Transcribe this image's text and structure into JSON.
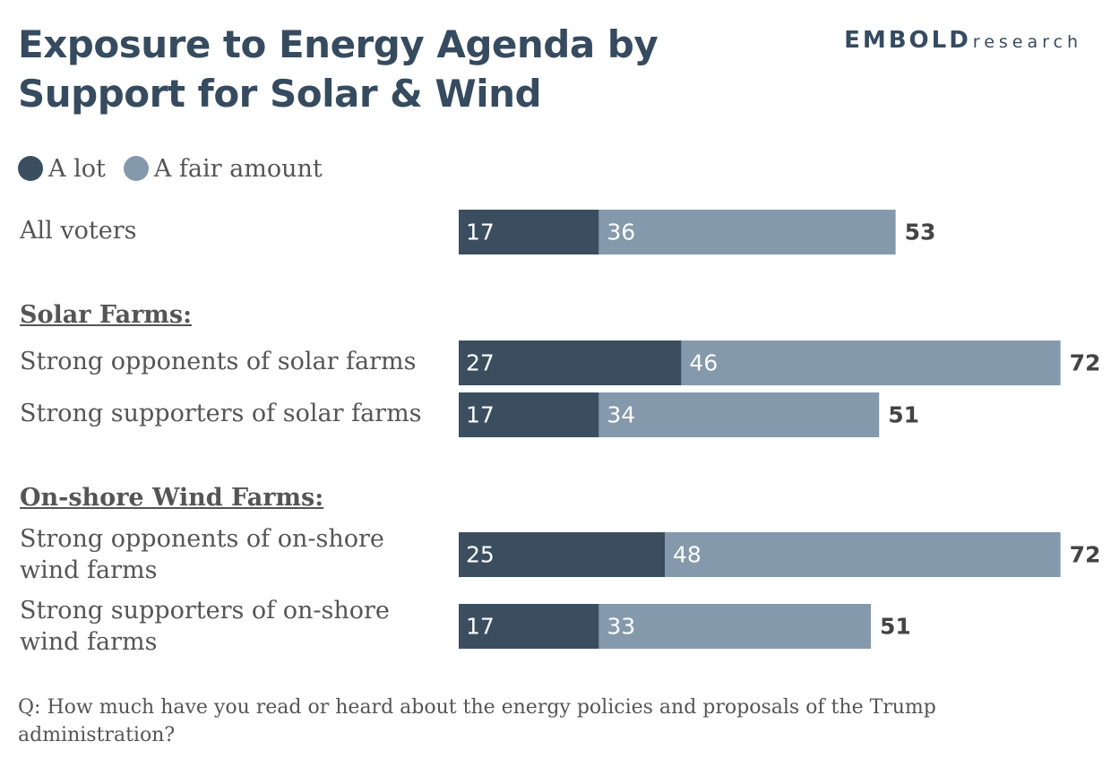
{
  "title": "Exposure to Energy Agenda by Support for Solar & Wind",
  "brand": {
    "name": "EMBOLD",
    "suffix": "research"
  },
  "colors": {
    "a_lot": "#3a4e60",
    "a_fair_amount": "#8499ab",
    "total_text": "#444444",
    "segment_text": "#ffffff"
  },
  "legend": [
    {
      "label": "A lot",
      "color": "#3a4e60"
    },
    {
      "label": "A fair amount",
      "color": "#8499ab"
    }
  ],
  "sections": {
    "solar": "Solar Farms:",
    "wind": "On-shore Wind Farms:"
  },
  "rows": [
    {
      "label": "All voters",
      "a_lot": 17,
      "fair": 36,
      "total": 53
    },
    {
      "label": "Strong opponents of solar farms",
      "a_lot": 27,
      "fair": 46,
      "total": 72
    },
    {
      "label": "Strong supporters of solar farms",
      "a_lot": 17,
      "fair": 34,
      "total": 51
    },
    {
      "label": "Strong opponents of on-shore wind farms",
      "a_lot": 25,
      "fair": 48,
      "total": 72
    },
    {
      "label": "Strong supporters of on-shore wind farms",
      "a_lot": 17,
      "fair": 33,
      "total": 51
    }
  ],
  "chart_data": {
    "type": "bar",
    "orientation": "horizontal",
    "stacked": true,
    "title": "Exposure to Energy Agenda by Support for Solar & Wind",
    "categories": [
      "All voters",
      "Strong opponents of solar farms",
      "Strong supporters of solar farms",
      "Strong opponents of on-shore wind farms",
      "Strong supporters of on-shore wind farms"
    ],
    "series": [
      {
        "name": "A lot",
        "values": [
          17,
          27,
          17,
          25,
          17
        ]
      },
      {
        "name": "A fair amount",
        "values": [
          36,
          46,
          34,
          48,
          33
        ]
      }
    ],
    "totals": [
      53,
      72,
      51,
      72,
      51
    ],
    "xlim": [
      0,
      73
    ],
    "grid": false,
    "legend_position": "top-left"
  },
  "footnote": "Q: How much have you read or heard about the energy policies and proposals of the Trump administration?"
}
